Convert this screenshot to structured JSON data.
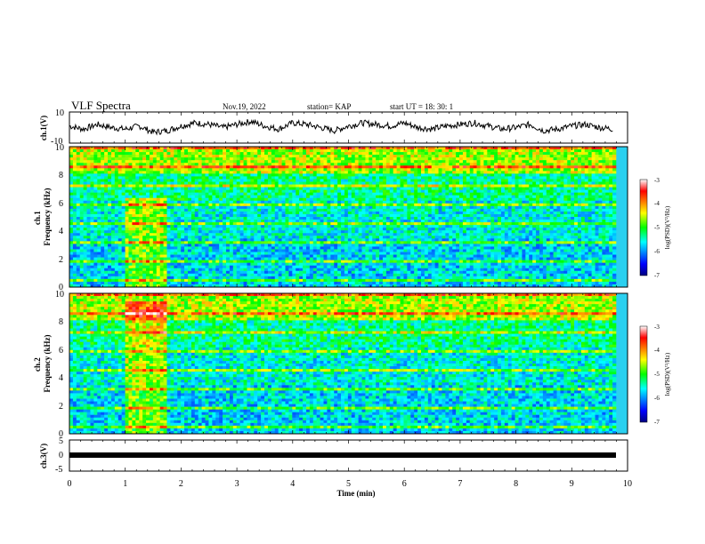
{
  "header": {
    "title": "VLF Spectra",
    "date": "Nov.19, 2022",
    "station": "station= KAP",
    "start": "start  UT  =   18: 30: 1"
  },
  "chart_data": [
    {
      "type": "line",
      "ylabel": "ch.1(V)",
      "xlabel": "",
      "ylim": [
        -10,
        10
      ],
      "xlim": [
        0,
        10
      ],
      "y_ticks": [
        "10",
        "-10"
      ],
      "x": [
        0.0,
        0.25,
        0.5,
        0.75,
        1.0,
        1.25,
        1.5,
        1.75,
        2.0,
        2.25,
        2.5,
        2.75,
        3.0,
        3.25,
        3.5,
        3.75,
        4.0,
        4.25,
        4.5,
        4.75,
        5.0,
        5.25,
        5.5,
        5.75,
        6.0,
        6.25,
        6.5,
        6.75,
        7.0,
        7.25,
        7.5,
        7.75,
        8.0,
        8.25,
        8.5,
        8.75,
        9.0,
        9.25,
        9.5,
        9.75
      ],
      "values": [
        1,
        -1,
        2,
        0,
        -1,
        1,
        -3,
        -2,
        1,
        3,
        2,
        0,
        2,
        4,
        1,
        -1,
        3,
        2,
        0,
        -2,
        1,
        3,
        2,
        1,
        3,
        0,
        -1,
        1,
        2,
        3,
        1,
        -1,
        0,
        2,
        -2,
        -1,
        1,
        2,
        0,
        -1
      ]
    },
    {
      "type": "heatmap",
      "ylabel": "ch.1\nFrequency (kHz)",
      "y_ticks": [
        "0",
        "2",
        "4",
        "6",
        "8",
        "10"
      ],
      "ylim": [
        0,
        10
      ],
      "xlim": [
        0,
        10
      ],
      "colorbar": {
        "label": "log(PSD)(V²/Hz)",
        "range": [
          -7,
          -3
        ],
        "ticks": [
          "-3",
          "-4",
          "-5",
          "-6",
          "-7"
        ]
      }
    },
    {
      "type": "heatmap",
      "ylabel": "ch.2\nFrequency (kHz)",
      "y_ticks": [
        "0",
        "2",
        "4",
        "6",
        "8",
        "10"
      ],
      "ylim": [
        0,
        10
      ],
      "xlim": [
        0,
        10
      ],
      "colorbar": {
        "label": "log(PSD)(V²/Hz)",
        "range": [
          -7,
          -3
        ],
        "ticks": [
          "-3",
          "-4",
          "-5",
          "-6",
          "-7"
        ]
      }
    },
    {
      "type": "line",
      "ylabel": "ch.3(V)",
      "ylim": [
        -5,
        5
      ],
      "y_ticks": [
        "5",
        "0",
        "-5"
      ],
      "xlim": [
        0,
        10
      ],
      "x": [
        0,
        9.85
      ],
      "values": [
        0,
        0
      ],
      "xlabel": "Time (min)",
      "x_ticks": [
        "0",
        "1",
        "2",
        "3",
        "4",
        "5",
        "6",
        "7",
        "8",
        "9",
        "10"
      ]
    }
  ]
}
